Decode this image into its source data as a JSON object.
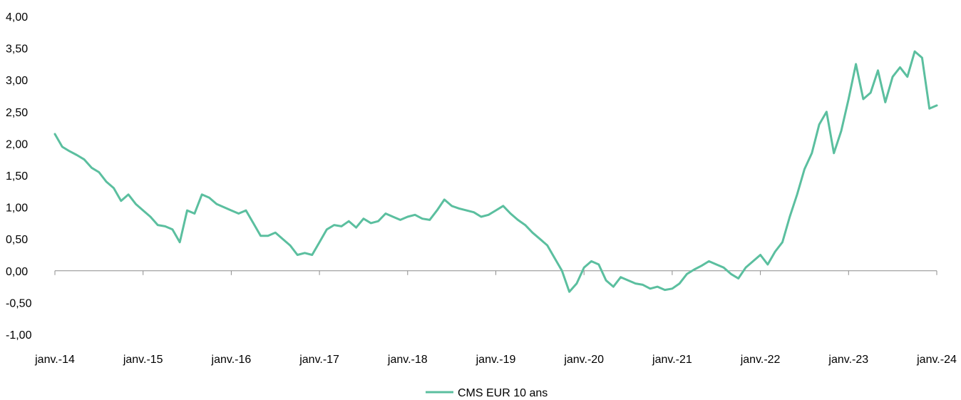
{
  "chart_data": {
    "type": "line",
    "title": "",
    "xlabel": "",
    "ylabel": "",
    "ylim": [
      -1.0,
      4.0
    ],
    "y_ticks": [
      4.0,
      3.5,
      3.0,
      2.5,
      2.0,
      1.5,
      1.0,
      0.5,
      0.0,
      -0.5,
      -1.0
    ],
    "y_tick_labels": [
      "4,00",
      "3,50",
      "3,00",
      "2,50",
      "2,00",
      "1,50",
      "1,00",
      "0,50",
      "0,00",
      "-0,50",
      "-1,00"
    ],
    "x_range": [
      "2014-01",
      "2024-01"
    ],
    "x_tick_labels": [
      "janv.-14",
      "janv.-15",
      "janv.-16",
      "janv.-17",
      "janv.-18",
      "janv.-19",
      "janv.-20",
      "janv.-21",
      "janv.-22",
      "janv.-23",
      "janv.-24"
    ],
    "grid": false,
    "legend_position": "bottom-center",
    "color": "#5bbf9f",
    "series": [
      {
        "name": "CMS EUR 10 ans",
        "points": [
          [
            "2014-01",
            2.15
          ],
          [
            "2014-02",
            1.95
          ],
          [
            "2014-03",
            1.88
          ],
          [
            "2014-04",
            1.82
          ],
          [
            "2014-05",
            1.75
          ],
          [
            "2014-06",
            1.62
          ],
          [
            "2014-07",
            1.55
          ],
          [
            "2014-08",
            1.4
          ],
          [
            "2014-09",
            1.3
          ],
          [
            "2014-10",
            1.1
          ],
          [
            "2014-11",
            1.2
          ],
          [
            "2014-12",
            1.05
          ],
          [
            "2015-01",
            0.95
          ],
          [
            "2015-02",
            0.85
          ],
          [
            "2015-03",
            0.72
          ],
          [
            "2015-04",
            0.7
          ],
          [
            "2015-05",
            0.65
          ],
          [
            "2015-06",
            0.45
          ],
          [
            "2015-07",
            0.95
          ],
          [
            "2015-08",
            0.9
          ],
          [
            "2015-09",
            1.2
          ],
          [
            "2015-10",
            1.15
          ],
          [
            "2015-11",
            1.05
          ],
          [
            "2015-12",
            1.0
          ],
          [
            "2016-01",
            0.95
          ],
          [
            "2016-02",
            0.9
          ],
          [
            "2016-03",
            0.95
          ],
          [
            "2016-04",
            0.75
          ],
          [
            "2016-05",
            0.55
          ],
          [
            "2016-06",
            0.55
          ],
          [
            "2016-07",
            0.6
          ],
          [
            "2016-08",
            0.5
          ],
          [
            "2016-09",
            0.4
          ],
          [
            "2016-10",
            0.25
          ],
          [
            "2016-11",
            0.28
          ],
          [
            "2016-12",
            0.25
          ],
          [
            "2017-01",
            0.45
          ],
          [
            "2017-02",
            0.65
          ],
          [
            "2017-03",
            0.72
          ],
          [
            "2017-04",
            0.7
          ],
          [
            "2017-05",
            0.78
          ],
          [
            "2017-06",
            0.68
          ],
          [
            "2017-07",
            0.82
          ],
          [
            "2017-08",
            0.75
          ],
          [
            "2017-09",
            0.78
          ],
          [
            "2017-10",
            0.9
          ],
          [
            "2017-11",
            0.85
          ],
          [
            "2017-12",
            0.8
          ],
          [
            "2018-01",
            0.85
          ],
          [
            "2018-02",
            0.88
          ],
          [
            "2018-03",
            0.82
          ],
          [
            "2018-04",
            0.8
          ],
          [
            "2018-05",
            0.95
          ],
          [
            "2018-06",
            1.12
          ],
          [
            "2018-07",
            1.02
          ],
          [
            "2018-08",
            0.98
          ],
          [
            "2018-09",
            0.95
          ],
          [
            "2018-10",
            0.92
          ],
          [
            "2018-11",
            0.85
          ],
          [
            "2018-12",
            0.88
          ],
          [
            "2019-01",
            0.95
          ],
          [
            "2019-02",
            1.02
          ],
          [
            "2019-03",
            0.9
          ],
          [
            "2019-04",
            0.8
          ],
          [
            "2019-05",
            0.72
          ],
          [
            "2019-06",
            0.6
          ],
          [
            "2019-07",
            0.5
          ],
          [
            "2019-08",
            0.4
          ],
          [
            "2019-09",
            0.2
          ],
          [
            "2019-10",
            0.0
          ],
          [
            "2019-11",
            -0.33
          ],
          [
            "2019-12",
            -0.2
          ],
          [
            "2020-01",
            0.05
          ],
          [
            "2020-02",
            0.15
          ],
          [
            "2020-03",
            0.1
          ],
          [
            "2020-04",
            -0.15
          ],
          [
            "2020-05",
            -0.25
          ],
          [
            "2020-06",
            -0.1
          ],
          [
            "2020-07",
            -0.15
          ],
          [
            "2020-08",
            -0.2
          ],
          [
            "2020-09",
            -0.22
          ],
          [
            "2020-10",
            -0.28
          ],
          [
            "2020-11",
            -0.25
          ],
          [
            "2020-12",
            -0.3
          ],
          [
            "2021-01",
            -0.28
          ],
          [
            "2021-02",
            -0.2
          ],
          [
            "2021-03",
            -0.05
          ],
          [
            "2021-04",
            0.02
          ],
          [
            "2021-05",
            0.08
          ],
          [
            "2021-06",
            0.15
          ],
          [
            "2021-07",
            0.1
          ],
          [
            "2021-08",
            0.05
          ],
          [
            "2021-09",
            -0.05
          ],
          [
            "2021-10",
            -0.12
          ],
          [
            "2021-11",
            0.05
          ],
          [
            "2021-12",
            0.15
          ],
          [
            "2022-01",
            0.25
          ],
          [
            "2022-02",
            0.1
          ],
          [
            "2022-03",
            0.3
          ],
          [
            "2022-04",
            0.45
          ],
          [
            "2022-05",
            0.85
          ],
          [
            "2022-06",
            1.2
          ],
          [
            "2022-07",
            1.6
          ],
          [
            "2022-08",
            1.85
          ],
          [
            "2022-09",
            2.3
          ],
          [
            "2022-10",
            2.5
          ],
          [
            "2022-11",
            1.85
          ],
          [
            "2022-12",
            2.2
          ],
          [
            "2023-01",
            2.7
          ],
          [
            "2023-02",
            3.25
          ],
          [
            "2023-03",
            2.7
          ],
          [
            "2023-04",
            2.8
          ],
          [
            "2023-05",
            3.15
          ],
          [
            "2023-06",
            2.65
          ],
          [
            "2023-07",
            3.05
          ],
          [
            "2023-08",
            3.2
          ],
          [
            "2023-09",
            3.05
          ],
          [
            "2023-10",
            3.45
          ],
          [
            "2023-11",
            3.35
          ],
          [
            "2023-12",
            2.55
          ],
          [
            "2024-01",
            2.6
          ]
        ]
      }
    ]
  }
}
